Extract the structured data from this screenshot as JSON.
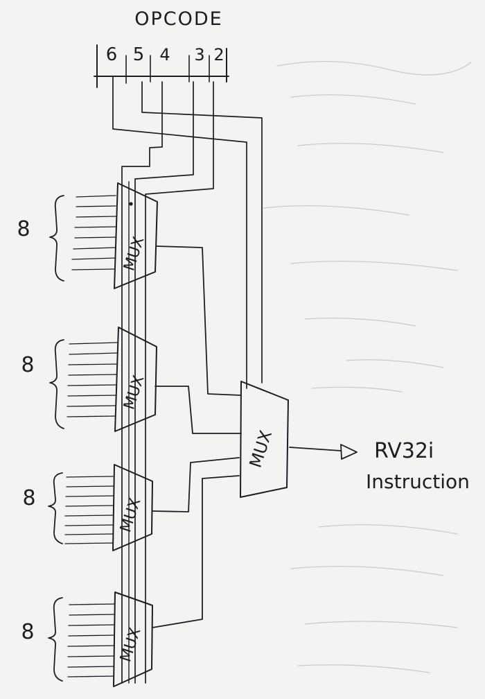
{
  "diagram": {
    "opcode_label": "OPCODE",
    "bit_labels": [
      "6",
      "5",
      "4",
      "3",
      "2"
    ],
    "mux_label": "MUX",
    "group_sizes": [
      "8",
      "8",
      "8",
      "8"
    ],
    "output_label_line1": "RV32i",
    "output_label_line2": "Instruction",
    "colors": {
      "ink": "#1c1c22",
      "paper": "#f4f3f1",
      "bleed_through": "#c9c8c6"
    }
  }
}
